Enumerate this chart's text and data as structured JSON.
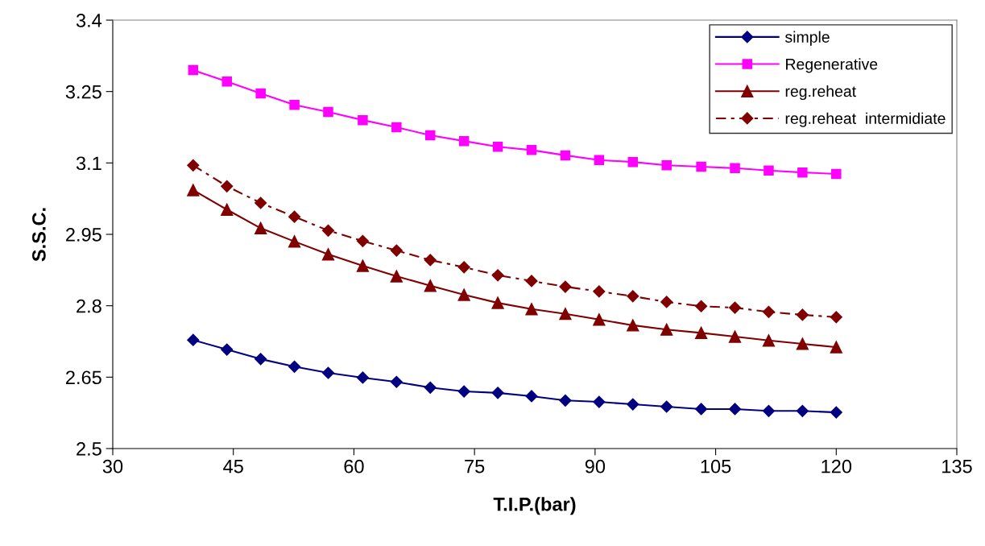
{
  "chart_data": {
    "type": "line",
    "xlabel": "T.I.P.(bar)",
    "ylabel": "S.S.C.",
    "x": [
      40,
      44.2,
      48.4,
      52.6,
      56.8,
      61.1,
      65.3,
      69.5,
      73.7,
      77.9,
      82.1,
      86.3,
      90.5,
      94.7,
      98.9,
      103.2,
      107.4,
      111.6,
      115.8,
      120
    ],
    "xlim": [
      30,
      135
    ],
    "xticks": [
      30,
      45,
      60,
      75,
      90,
      105,
      120,
      135
    ],
    "ylim": [
      2.5,
      3.4
    ],
    "yticks": [
      2.5,
      2.65,
      2.8,
      2.95,
      3.1,
      3.25,
      3.4
    ],
    "grid": false,
    "legend": "top right",
    "series": [
      {
        "name": "simple",
        "color": "#000080",
        "marker": "diamond",
        "line_style": "solid",
        "values": [
          2.728,
          2.708,
          2.688,
          2.672,
          2.659,
          2.649,
          2.64,
          2.628,
          2.62,
          2.617,
          2.61,
          2.601,
          2.598,
          2.593,
          2.588,
          2.583,
          2.583,
          2.579,
          2.579,
          2.576
        ]
      },
      {
        "name": "Regenerative",
        "color": "#ff00ff",
        "marker": "square",
        "line_style": "solid",
        "values": [
          3.295,
          3.271,
          3.246,
          3.222,
          3.207,
          3.19,
          3.175,
          3.158,
          3.146,
          3.134,
          3.127,
          3.116,
          3.106,
          3.102,
          3.095,
          3.092,
          3.089,
          3.084,
          3.08,
          3.077
        ]
      },
      {
        "name": "reg.reheat",
        "color": "#800000",
        "marker": "triangle",
        "line_style": "solid",
        "values": [
          3.043,
          3.002,
          2.963,
          2.935,
          2.908,
          2.884,
          2.862,
          2.842,
          2.823,
          2.806,
          2.793,
          2.783,
          2.771,
          2.759,
          2.75,
          2.743,
          2.735,
          2.727,
          2.72,
          2.713
        ]
      },
      {
        "name": "reg.reheat  intermidiate",
        "color": "#800000",
        "marker": "diamond",
        "line_style": "dashed",
        "values": [
          3.095,
          3.051,
          3.016,
          2.987,
          2.958,
          2.936,
          2.916,
          2.896,
          2.881,
          2.864,
          2.852,
          2.84,
          2.83,
          2.82,
          2.808,
          2.799,
          2.796,
          2.787,
          2.781,
          2.776
        ]
      }
    ]
  }
}
